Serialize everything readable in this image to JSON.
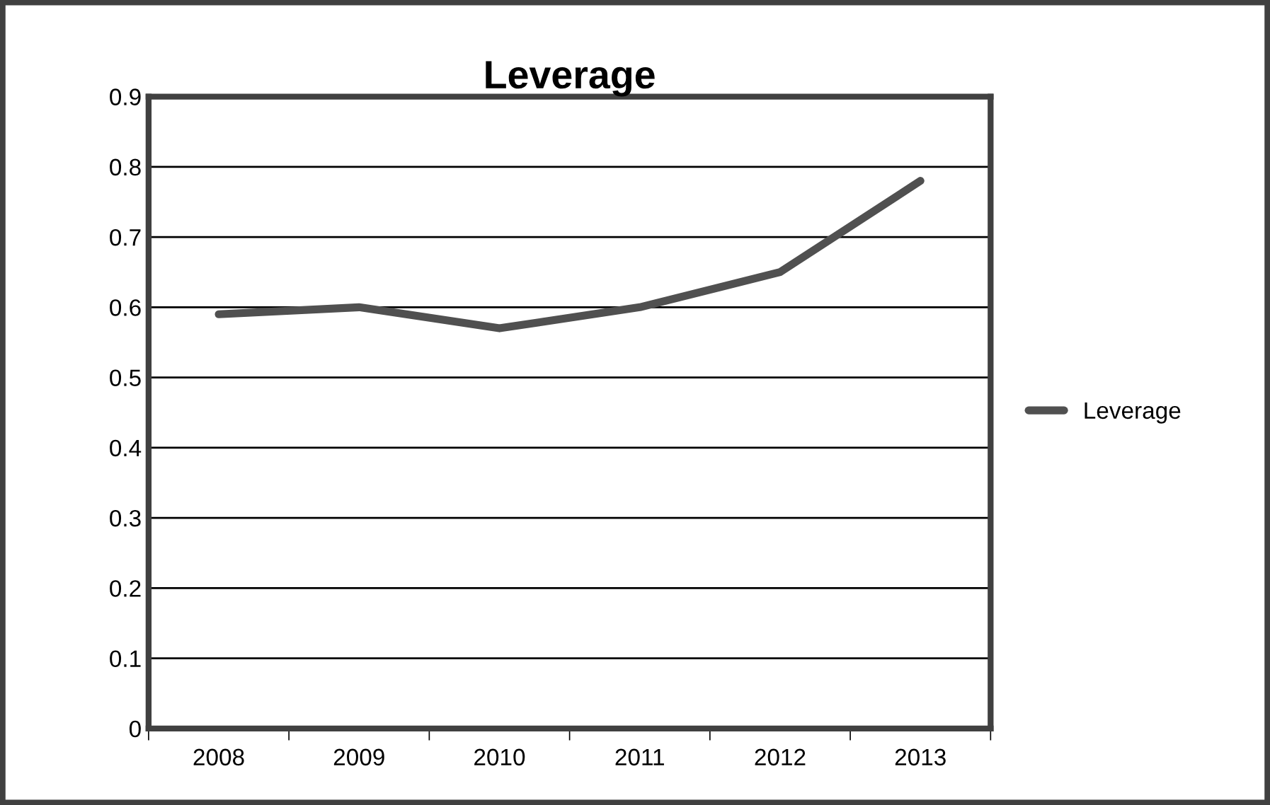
{
  "chart_data": {
    "type": "line",
    "title": "Leverage",
    "categories": [
      "2008",
      "2009",
      "2010",
      "2011",
      "2012",
      "2013"
    ],
    "series": [
      {
        "name": "Leverage",
        "color": "#505050",
        "values": [
          0.59,
          0.6,
          0.57,
          0.6,
          0.65,
          0.78
        ]
      }
    ],
    "ylim": [
      0,
      0.9
    ],
    "yticks": [
      0,
      0.1,
      0.2,
      0.3,
      0.4,
      0.5,
      0.6,
      0.7,
      0.8,
      0.9
    ],
    "grid": "y",
    "legend": "right",
    "marker": "none",
    "line_style": "solid"
  }
}
